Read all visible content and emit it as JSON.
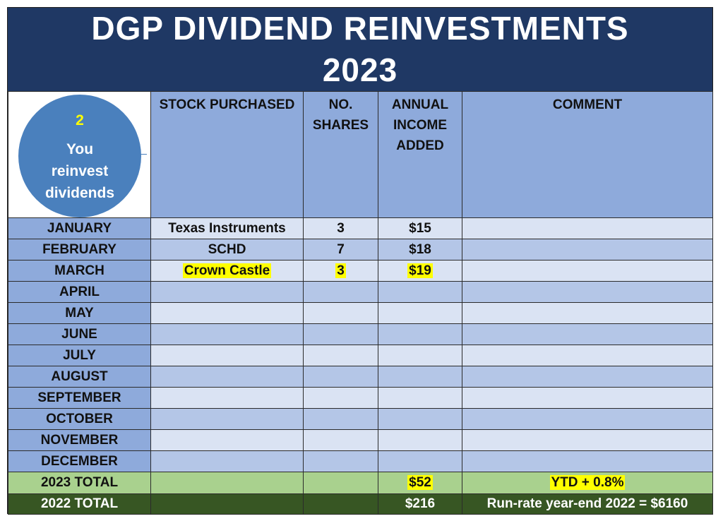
{
  "title": {
    "line1": "DGP DIVIDEND REINVESTMENTS",
    "line2": "2023"
  },
  "logo": {
    "number": "2",
    "line1": "You",
    "line2": "reinvest",
    "line3": "dividends"
  },
  "columns": {
    "stock": "STOCK PURCHASED",
    "shares_l1": "NO.",
    "shares_l2": "SHARES",
    "income_l1": "ANNUAL",
    "income_l2": "INCOME",
    "income_l3": "ADDED",
    "comment": "COMMENT"
  },
  "months": [
    {
      "month": "JANUARY",
      "stock": "Texas Instruments",
      "shares": "3",
      "income": "$15",
      "comment": ""
    },
    {
      "month": "FEBRUARY",
      "stock": "SCHD",
      "shares": "7",
      "income": "$18",
      "comment": ""
    },
    {
      "month": "MARCH",
      "stock": "Crown Castle",
      "shares": "3",
      "income": "$19",
      "comment": ""
    },
    {
      "month": "APRIL",
      "stock": "",
      "shares": "",
      "income": "",
      "comment": ""
    },
    {
      "month": "MAY",
      "stock": "",
      "shares": "",
      "income": "",
      "comment": ""
    },
    {
      "month": "JUNE",
      "stock": "",
      "shares": "",
      "income": "",
      "comment": ""
    },
    {
      "month": "JULY",
      "stock": "",
      "shares": "",
      "income": "",
      "comment": ""
    },
    {
      "month": "AUGUST",
      "stock": "",
      "shares": "",
      "income": "",
      "comment": ""
    },
    {
      "month": "SEPTEMBER",
      "stock": "",
      "shares": "",
      "income": "",
      "comment": ""
    },
    {
      "month": "OCTOBER",
      "stock": "",
      "shares": "",
      "income": "",
      "comment": ""
    },
    {
      "month": "NOVEMBER",
      "stock": "",
      "shares": "",
      "income": "",
      "comment": ""
    },
    {
      "month": "DECEMBER",
      "stock": "",
      "shares": "",
      "income": "",
      "comment": ""
    }
  ],
  "total_2023": {
    "label": "2023 TOTAL",
    "income": "$52",
    "comment": "YTD + 0.8%"
  },
  "total_2022": {
    "label": "2022 TOTAL",
    "income": "$216",
    "comment": "Run-rate year-end 2022 = $6160"
  },
  "colors": {
    "title_bg": "#1f3864",
    "header_bg": "#8eaadb",
    "row_light": "#dae3f3",
    "row_mid": "#b4c6e7",
    "total_2023_bg": "#a9d18e",
    "total_2022_bg": "#375623",
    "highlight": "#ffff00"
  }
}
